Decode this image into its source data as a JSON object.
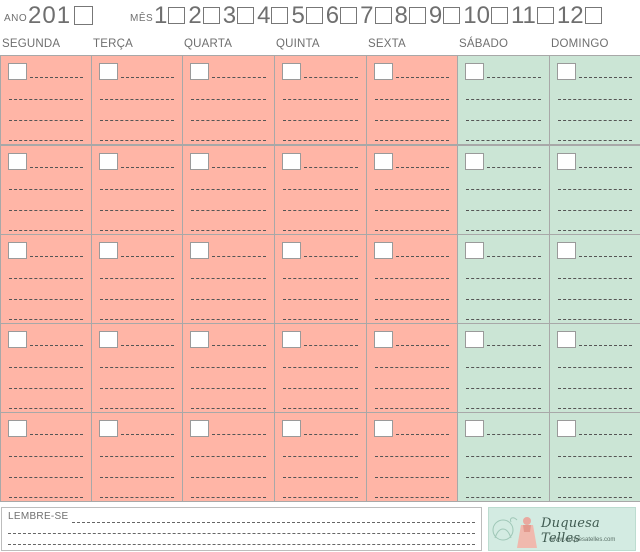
{
  "header": {
    "year_label": "ANO",
    "year_value": "201",
    "month_label": "MÊS",
    "months": [
      "1",
      "2",
      "3",
      "4",
      "5",
      "6",
      "7",
      "8",
      "9",
      "10",
      "11",
      "12"
    ]
  },
  "weekdays": [
    "SEGUNDA",
    "TERÇA",
    "QUARTA",
    "QUINTA",
    "SEXTA",
    "SÁBADO",
    "DOMINGO"
  ],
  "footer": {
    "remember_label": "LEMBRE-SE",
    "logo_title": "Duquesa Telles",
    "logo_url": "www.duquesatelles.com"
  },
  "colors": {
    "weekday_fill": "#ffb5a6",
    "weekend_fill": "#cbe5d5",
    "text": "#6f6f6f"
  }
}
